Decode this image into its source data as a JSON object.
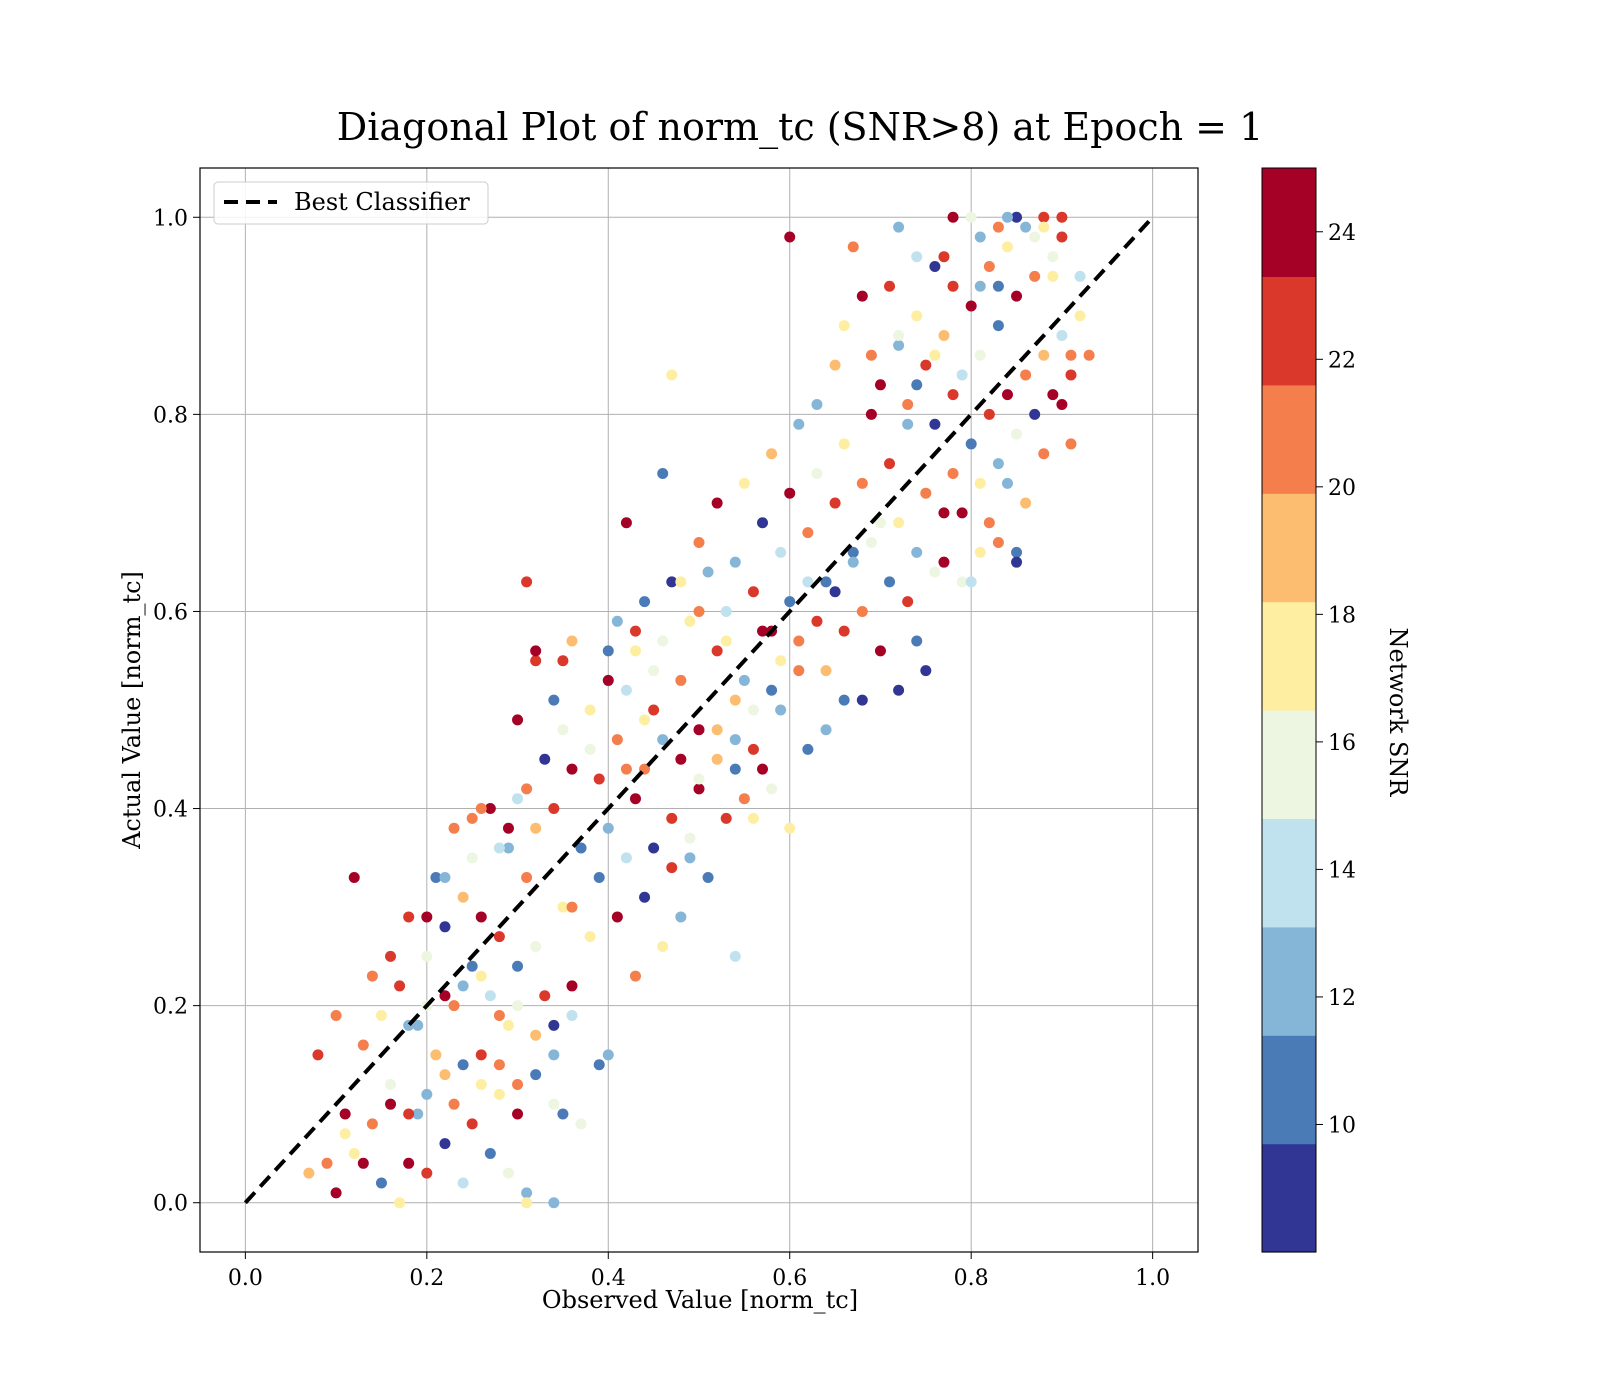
{
  "chart_data": {
    "type": "scatter",
    "title": "Diagonal Plot of norm_tc (SNR>8) at Epoch = 1",
    "xlabel": "Observed Value [norm_tc]",
    "ylabel": "Actual Value [norm_tc]",
    "xlim": [
      -0.05,
      1.05
    ],
    "ylim": [
      -0.05,
      1.05
    ],
    "xticks": [
      "0.0",
      "0.2",
      "0.4",
      "0.6",
      "0.8",
      "1.0"
    ],
    "yticks": [
      "0.0",
      "0.2",
      "0.4",
      "0.6",
      "0.8",
      "1.0"
    ],
    "grid": true,
    "legend": {
      "position": "upper-left",
      "entries": [
        "Best Classifier"
      ]
    },
    "reference_line": {
      "name": "Best Classifier",
      "style": "dashed",
      "color": "#000000",
      "x": [
        0,
        1
      ],
      "y": [
        0,
        1
      ]
    },
    "colorbar": {
      "label": "Network SNR",
      "range": [
        8,
        25
      ],
      "ticks": [
        "10",
        "12",
        "14",
        "16",
        "18",
        "20",
        "22",
        "24"
      ],
      "bins": [
        "#313695",
        "#4a7bb7",
        "#86b6d7",
        "#c0e2ee",
        "#ecf6e0",
        "#feeea2",
        "#fdbd70",
        "#f47e4c",
        "#da382a",
        "#a50026"
      ]
    },
    "points": [
      [
        0.1,
        0.01,
        24
      ],
      [
        0.12,
        0.05,
        17
      ],
      [
        0.14,
        0.08,
        21
      ],
      [
        0.15,
        0.02,
        11
      ],
      [
        0.16,
        0.12,
        16
      ],
      [
        0.17,
        0.0,
        18
      ],
      [
        0.18,
        0.04,
        24
      ],
      [
        0.19,
        0.09,
        13
      ],
      [
        0.2,
        0.03,
        22
      ],
      [
        0.21,
        0.15,
        19
      ],
      [
        0.22,
        0.06,
        9
      ],
      [
        0.23,
        0.1,
        20
      ],
      [
        0.24,
        0.02,
        14
      ],
      [
        0.25,
        0.08,
        23
      ],
      [
        0.26,
        0.12,
        17
      ],
      [
        0.27,
        0.05,
        10
      ],
      [
        0.28,
        0.14,
        21
      ],
      [
        0.29,
        0.03,
        15
      ],
      [
        0.3,
        0.09,
        24
      ],
      [
        0.31,
        0.01,
        12
      ],
      [
        0.13,
        0.16,
        20
      ],
      [
        0.15,
        0.19,
        18
      ],
      [
        0.17,
        0.22,
        23
      ],
      [
        0.19,
        0.18,
        13
      ],
      [
        0.2,
        0.25,
        16
      ],
      [
        0.22,
        0.28,
        9
      ],
      [
        0.23,
        0.2,
        21
      ],
      [
        0.24,
        0.31,
        19
      ],
      [
        0.25,
        0.24,
        11
      ],
      [
        0.26,
        0.29,
        24
      ],
      [
        0.27,
        0.21,
        14
      ],
      [
        0.28,
        0.27,
        22
      ],
      [
        0.29,
        0.18,
        17
      ],
      [
        0.3,
        0.24,
        10
      ],
      [
        0.31,
        0.33,
        20
      ],
      [
        0.32,
        0.26,
        15
      ],
      [
        0.33,
        0.21,
        23
      ],
      [
        0.34,
        0.15,
        12
      ],
      [
        0.35,
        0.3,
        18
      ],
      [
        0.36,
        0.22,
        24
      ],
      [
        0.21,
        0.33,
        11
      ],
      [
        0.23,
        0.38,
        20
      ],
      [
        0.25,
        0.35,
        16
      ],
      [
        0.27,
        0.4,
        24
      ],
      [
        0.29,
        0.36,
        13
      ],
      [
        0.31,
        0.42,
        21
      ],
      [
        0.32,
        0.38,
        19
      ],
      [
        0.33,
        0.45,
        9
      ],
      [
        0.34,
        0.4,
        22
      ],
      [
        0.35,
        0.48,
        15
      ],
      [
        0.36,
        0.44,
        24
      ],
      [
        0.37,
        0.36,
        10
      ],
      [
        0.38,
        0.5,
        18
      ],
      [
        0.39,
        0.43,
        23
      ],
      [
        0.4,
        0.38,
        12
      ],
      [
        0.41,
        0.47,
        20
      ],
      [
        0.42,
        0.52,
        14
      ],
      [
        0.43,
        0.41,
        24
      ],
      [
        0.44,
        0.49,
        17
      ],
      [
        0.45,
        0.36,
        9
      ],
      [
        0.3,
        0.49,
        24
      ],
      [
        0.32,
        0.55,
        22
      ],
      [
        0.34,
        0.51,
        11
      ],
      [
        0.36,
        0.57,
        19
      ],
      [
        0.38,
        0.46,
        16
      ],
      [
        0.4,
        0.53,
        24
      ],
      [
        0.41,
        0.59,
        13
      ],
      [
        0.42,
        0.44,
        21
      ],
      [
        0.43,
        0.56,
        18
      ],
      [
        0.44,
        0.61,
        10
      ],
      [
        0.45,
        0.5,
        23
      ],
      [
        0.46,
        0.57,
        15
      ],
      [
        0.47,
        0.63,
        9
      ],
      [
        0.48,
        0.53,
        20
      ],
      [
        0.49,
        0.59,
        17
      ],
      [
        0.5,
        0.48,
        24
      ],
      [
        0.51,
        0.64,
        12
      ],
      [
        0.52,
        0.56,
        22
      ],
      [
        0.53,
        0.6,
        14
      ],
      [
        0.54,
        0.51,
        19
      ],
      [
        0.36,
        0.3,
        21
      ],
      [
        0.38,
        0.27,
        17
      ],
      [
        0.39,
        0.33,
        11
      ],
      [
        0.41,
        0.29,
        24
      ],
      [
        0.42,
        0.35,
        14
      ],
      [
        0.43,
        0.23,
        20
      ],
      [
        0.44,
        0.31,
        9
      ],
      [
        0.46,
        0.26,
        18
      ],
      [
        0.47,
        0.34,
        22
      ],
      [
        0.48,
        0.29,
        12
      ],
      [
        0.49,
        0.37,
        16
      ],
      [
        0.5,
        0.42,
        24
      ],
      [
        0.51,
        0.33,
        10
      ],
      [
        0.52,
        0.45,
        19
      ],
      [
        0.53,
        0.39,
        23
      ],
      [
        0.54,
        0.47,
        13
      ],
      [
        0.55,
        0.41,
        21
      ],
      [
        0.56,
        0.5,
        15
      ],
      [
        0.57,
        0.44,
        24
      ],
      [
        0.58,
        0.52,
        11
      ],
      [
        0.5,
        0.67,
        20
      ],
      [
        0.52,
        0.71,
        24
      ],
      [
        0.54,
        0.65,
        12
      ],
      [
        0.55,
        0.73,
        17
      ],
      [
        0.56,
        0.62,
        22
      ],
      [
        0.57,
        0.69,
        9
      ],
      [
        0.58,
        0.76,
        19
      ],
      [
        0.59,
        0.66,
        14
      ],
      [
        0.6,
        0.72,
        24
      ],
      [
        0.61,
        0.79,
        13
      ],
      [
        0.62,
        0.68,
        21
      ],
      [
        0.63,
        0.74,
        16
      ],
      [
        0.64,
        0.63,
        10
      ],
      [
        0.65,
        0.71,
        23
      ],
      [
        0.66,
        0.77,
        18
      ],
      [
        0.67,
        0.66,
        11
      ],
      [
        0.68,
        0.73,
        20
      ],
      [
        0.69,
        0.8,
        24
      ],
      [
        0.7,
        0.69,
        15
      ],
      [
        0.71,
        0.75,
        22
      ],
      [
        0.58,
        0.58,
        24
      ],
      [
        0.59,
        0.55,
        17
      ],
      [
        0.6,
        0.61,
        10
      ],
      [
        0.61,
        0.57,
        21
      ],
      [
        0.62,
        0.63,
        14
      ],
      [
        0.63,
        0.59,
        23
      ],
      [
        0.64,
        0.54,
        19
      ],
      [
        0.65,
        0.62,
        9
      ],
      [
        0.66,
        0.58,
        22
      ],
      [
        0.67,
        0.65,
        12
      ],
      [
        0.68,
        0.6,
        20
      ],
      [
        0.69,
        0.67,
        16
      ],
      [
        0.7,
        0.56,
        24
      ],
      [
        0.71,
        0.63,
        11
      ],
      [
        0.72,
        0.69,
        18
      ],
      [
        0.73,
        0.61,
        23
      ],
      [
        0.74,
        0.66,
        13
      ],
      [
        0.75,
        0.72,
        21
      ],
      [
        0.76,
        0.64,
        15
      ],
      [
        0.77,
        0.7,
        24
      ],
      [
        0.7,
        0.83,
        24
      ],
      [
        0.72,
        0.87,
        12
      ],
      [
        0.73,
        0.81,
        20
      ],
      [
        0.74,
        0.9,
        17
      ],
      [
        0.75,
        0.85,
        23
      ],
      [
        0.76,
        0.79,
        9
      ],
      [
        0.77,
        0.88,
        19
      ],
      [
        0.78,
        0.93,
        22
      ],
      [
        0.79,
        0.84,
        14
      ],
      [
        0.8,
        0.91,
        24
      ],
      [
        0.81,
        0.86,
        16
      ],
      [
        0.82,
        0.95,
        21
      ],
      [
        0.83,
        0.89,
        10
      ],
      [
        0.84,
        0.97,
        18
      ],
      [
        0.85,
        0.92,
        24
      ],
      [
        0.86,
        0.99,
        13
      ],
      [
        0.87,
        0.94,
        20
      ],
      [
        0.88,
        1.0,
        23
      ],
      [
        0.89,
        0.96,
        15
      ],
      [
        0.9,
        0.98,
        22
      ],
      [
        0.78,
        0.74,
        20
      ],
      [
        0.79,
        0.7,
        24
      ],
      [
        0.8,
        0.77,
        11
      ],
      [
        0.81,
        0.73,
        18
      ],
      [
        0.82,
        0.8,
        22
      ],
      [
        0.83,
        0.75,
        13
      ],
      [
        0.84,
        0.82,
        24
      ],
      [
        0.85,
        0.78,
        16
      ],
      [
        0.86,
        0.84,
        21
      ],
      [
        0.87,
        0.8,
        9
      ],
      [
        0.88,
        0.86,
        19
      ],
      [
        0.89,
        0.82,
        24
      ],
      [
        0.9,
        0.88,
        14
      ],
      [
        0.91,
        0.84,
        22
      ],
      [
        0.92,
        0.9,
        17
      ],
      [
        0.85,
        0.66,
        10
      ],
      [
        0.79,
        0.63,
        15
      ],
      [
        0.82,
        0.69,
        20
      ],
      [
        0.77,
        0.65,
        24
      ],
      [
        0.84,
        0.73,
        12
      ],
      [
        0.6,
        0.98,
        24
      ],
      [
        0.67,
        0.97,
        21
      ],
      [
        0.72,
        0.99,
        12
      ],
      [
        0.78,
        1.0,
        24
      ],
      [
        0.8,
        1.0,
        16
      ],
      [
        0.83,
        0.99,
        20
      ],
      [
        0.85,
        1.0,
        9
      ],
      [
        0.88,
        0.99,
        18
      ],
      [
        0.9,
        1.0,
        22
      ],
      [
        0.81,
        0.98,
        13
      ],
      [
        0.12,
        0.33,
        24
      ],
      [
        0.31,
        0.63,
        22
      ],
      [
        0.32,
        0.56,
        24
      ],
      [
        0.35,
        0.55,
        22
      ],
      [
        0.42,
        0.69,
        24
      ],
      [
        0.46,
        0.74,
        10
      ],
      [
        0.47,
        0.84,
        17
      ],
      [
        0.4,
        0.15,
        12
      ],
      [
        0.39,
        0.14,
        11
      ],
      [
        0.35,
        0.09,
        10
      ],
      [
        0.34,
        0.0,
        13
      ],
      [
        0.31,
        0.0,
        17
      ],
      [
        0.37,
        0.08,
        15
      ],
      [
        0.07,
        0.03,
        19
      ],
      [
        0.08,
        0.15,
        22
      ],
      [
        0.09,
        0.04,
        21
      ],
      [
        0.1,
        0.19,
        20
      ],
      [
        0.11,
        0.09,
        24
      ],
      [
        0.11,
        0.07,
        17
      ],
      [
        0.13,
        0.04,
        24
      ],
      [
        0.54,
        0.25,
        14
      ],
      [
        0.56,
        0.39,
        18
      ],
      [
        0.6,
        0.38,
        17
      ],
      [
        0.62,
        0.46,
        11
      ],
      [
        0.64,
        0.48,
        12
      ],
      [
        0.66,
        0.51,
        10
      ],
      [
        0.68,
        0.51,
        9
      ],
      [
        0.72,
        0.52,
        9
      ],
      [
        0.75,
        0.54,
        9
      ],
      [
        0.74,
        0.57,
        10
      ],
      [
        0.73,
        0.79,
        13
      ],
      [
        0.74,
        0.96,
        14
      ],
      [
        0.76,
        0.95,
        9
      ],
      [
        0.77,
        0.96,
        22
      ],
      [
        0.81,
        0.93,
        13
      ],
      [
        0.83,
        0.93,
        10
      ],
      [
        0.84,
        1.0,
        12
      ],
      [
        0.87,
        0.98,
        15
      ],
      [
        0.89,
        0.94,
        17
      ],
      [
        0.92,
        0.94,
        14
      ],
      [
        0.91,
        0.86,
        20
      ],
      [
        0.93,
        0.86,
        21
      ],
      [
        0.9,
        0.81,
        24
      ],
      [
        0.91,
        0.77,
        20
      ],
      [
        0.88,
        0.76,
        21
      ],
      [
        0.85,
        0.65,
        9
      ],
      [
        0.8,
        0.63,
        14
      ],
      [
        0.81,
        0.66,
        18
      ],
      [
        0.83,
        0.67,
        21
      ],
      [
        0.86,
        0.71,
        19
      ],
      [
        0.14,
        0.23,
        21
      ],
      [
        0.16,
        0.25,
        22
      ],
      [
        0.18,
        0.29,
        22
      ],
      [
        0.2,
        0.29,
        24
      ],
      [
        0.22,
        0.33,
        13
      ],
      [
        0.25,
        0.39,
        21
      ],
      [
        0.26,
        0.4,
        20
      ],
      [
        0.28,
        0.36,
        14
      ],
      [
        0.29,
        0.38,
        24
      ],
      [
        0.3,
        0.41,
        14
      ],
      [
        0.18,
        0.18,
        13
      ],
      [
        0.2,
        0.2,
        16
      ],
      [
        0.22,
        0.21,
        24
      ],
      [
        0.24,
        0.22,
        12
      ],
      [
        0.26,
        0.23,
        18
      ],
      [
        0.28,
        0.19,
        21
      ],
      [
        0.3,
        0.2,
        15
      ],
      [
        0.32,
        0.17,
        19
      ],
      [
        0.34,
        0.18,
        9
      ],
      [
        0.36,
        0.19,
        14
      ],
      [
        0.16,
        0.1,
        24
      ],
      [
        0.18,
        0.09,
        22
      ],
      [
        0.2,
        0.11,
        13
      ],
      [
        0.22,
        0.13,
        19
      ],
      [
        0.24,
        0.14,
        10
      ],
      [
        0.26,
        0.15,
        23
      ],
      [
        0.28,
        0.11,
        17
      ],
      [
        0.3,
        0.12,
        20
      ],
      [
        0.32,
        0.13,
        11
      ],
      [
        0.34,
        0.1,
        16
      ],
      [
        0.4,
        0.56,
        10
      ],
      [
        0.43,
        0.58,
        22
      ],
      [
        0.45,
        0.54,
        15
      ],
      [
        0.48,
        0.63,
        17
      ],
      [
        0.5,
        0.6,
        21
      ],
      [
        0.53,
        0.57,
        18
      ],
      [
        0.55,
        0.53,
        13
      ],
      [
        0.57,
        0.58,
        24
      ],
      [
        0.59,
        0.5,
        12
      ],
      [
        0.61,
        0.54,
        20
      ],
      [
        0.44,
        0.44,
        21
      ],
      [
        0.46,
        0.47,
        12
      ],
      [
        0.48,
        0.45,
        24
      ],
      [
        0.5,
        0.43,
        16
      ],
      [
        0.52,
        0.48,
        19
      ],
      [
        0.54,
        0.44,
        10
      ],
      [
        0.56,
        0.46,
        22
      ],
      [
        0.58,
        0.42,
        15
      ],
      [
        0.47,
        0.39,
        23
      ],
      [
        0.49,
        0.35,
        13
      ],
      [
        0.63,
        0.81,
        12
      ],
      [
        0.65,
        0.85,
        19
      ],
      [
        0.66,
        0.89,
        17
      ],
      [
        0.68,
        0.92,
        24
      ],
      [
        0.69,
        0.86,
        21
      ],
      [
        0.71,
        0.93,
        22
      ],
      [
        0.72,
        0.88,
        16
      ],
      [
        0.74,
        0.83,
        10
      ],
      [
        0.76,
        0.86,
        18
      ],
      [
        0.78,
        0.82,
        23
      ]
    ]
  }
}
